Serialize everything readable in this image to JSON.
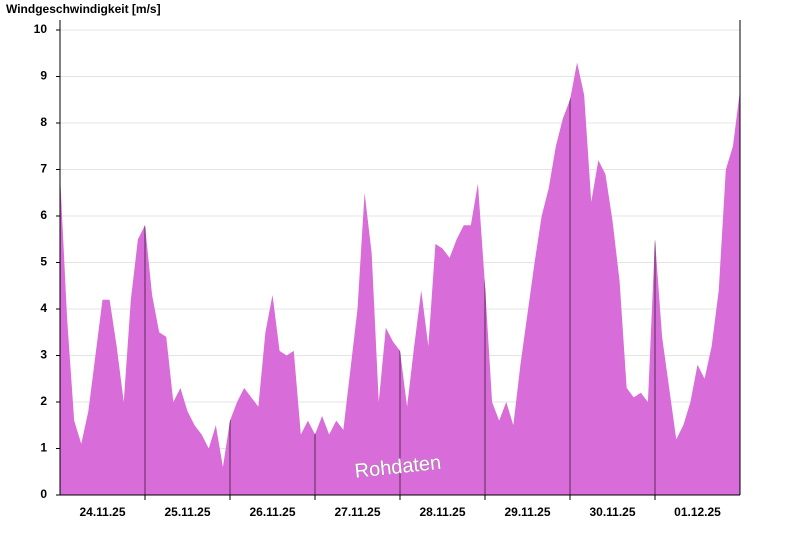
{
  "chart_data": {
    "type": "area",
    "title": "Windgeschwindigkeit [m/s]",
    "annotation": "Rohdaten",
    "color": "#d86cd8",
    "x": [
      0,
      2,
      4,
      6,
      8,
      10,
      12,
      14,
      16,
      18,
      20,
      22,
      24,
      26,
      28,
      30,
      32,
      34,
      36,
      38,
      40,
      42,
      44,
      46,
      48,
      50,
      52,
      54,
      56,
      58,
      60,
      62,
      64,
      66,
      68,
      70,
      72,
      74,
      76,
      78,
      80,
      82,
      84,
      86,
      88,
      90,
      92,
      94,
      96,
      98,
      100,
      102,
      104,
      106,
      108,
      110,
      112,
      114,
      116,
      118,
      120,
      122,
      124,
      126,
      128,
      130,
      132,
      134,
      136,
      138,
      140,
      142,
      144,
      146,
      148,
      150,
      152,
      154,
      156,
      158,
      160,
      162,
      164,
      166,
      168,
      170,
      172,
      174,
      176,
      178,
      180,
      182,
      184,
      186,
      188,
      190,
      192
    ],
    "values": [
      6.9,
      3.8,
      1.6,
      1.1,
      1.8,
      3.0,
      4.2,
      4.2,
      3.2,
      2.0,
      4.2,
      5.5,
      5.8,
      4.3,
      3.5,
      3.4,
      2.0,
      2.3,
      1.8,
      1.5,
      1.3,
      1.0,
      1.5,
      0.6,
      1.6,
      2.0,
      2.3,
      2.1,
      1.9,
      3.5,
      4.3,
      3.1,
      3.0,
      3.1,
      1.3,
      1.6,
      1.3,
      1.7,
      1.3,
      1.6,
      1.4,
      2.7,
      4.0,
      6.5,
      5.2,
      2.0,
      3.6,
      3.3,
      3.1,
      1.9,
      3.2,
      4.4,
      3.2,
      5.4,
      5.3,
      5.1,
      5.5,
      5.8,
      5.8,
      6.7,
      4.5,
      2.0,
      1.6,
      2.0,
      1.5,
      2.8,
      3.9,
      5.0,
      6.0,
      6.6,
      7.5,
      8.1,
      8.5,
      9.3,
      8.6,
      6.3,
      7.2,
      6.9,
      5.9,
      4.6,
      2.3,
      2.1,
      2.2,
      2.0,
      5.5,
      3.4,
      2.3,
      1.2,
      1.5,
      2.0,
      2.8,
      2.5,
      3.2,
      4.4,
      7.0,
      7.5,
      8.7
    ],
    "xlim": [
      0,
      192
    ],
    "xticks": [
      {
        "value": 12,
        "label": "24.11.25"
      },
      {
        "value": 36,
        "label": "25.11.25"
      },
      {
        "value": 60,
        "label": "26.11.25"
      },
      {
        "value": 84,
        "label": "27.11.25"
      },
      {
        "value": 108,
        "label": "28.11.25"
      },
      {
        "value": 132,
        "label": "29.11.25"
      },
      {
        "value": 156,
        "label": "30.11.25"
      },
      {
        "value": 180,
        "label": "01.12.25"
      }
    ],
    "xminorticks": [
      24,
      48,
      72,
      96,
      120,
      144,
      168
    ],
    "ylim": [
      0,
      10
    ],
    "yticks": [
      0,
      1,
      2,
      3,
      4,
      5,
      6,
      7,
      8,
      9,
      10
    ],
    "grid": true
  }
}
